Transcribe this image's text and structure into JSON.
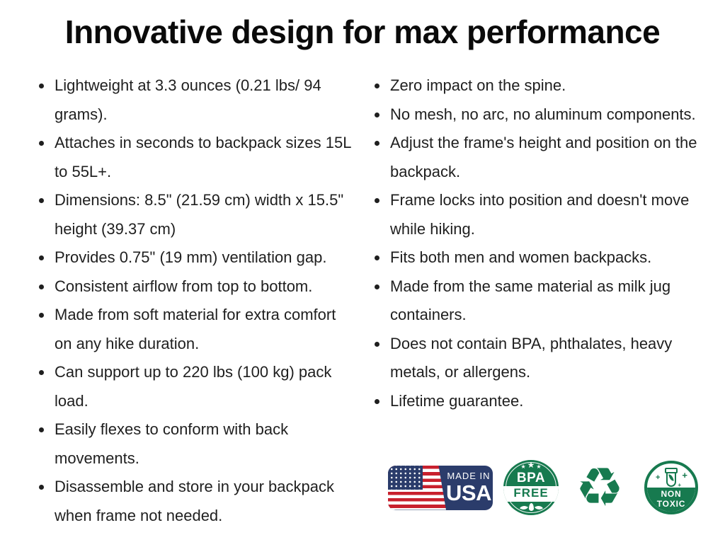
{
  "header": {
    "title": "Innovative design for max performance"
  },
  "features": {
    "left": [
      "Lightweight at 3.3 ounces (0.21 lbs/ 94 grams).",
      "Attaches in seconds to backpack sizes 15L to 55L+.",
      "Dimensions: 8.5\" (21.59 cm) width x 15.5\" height (39.37 cm)",
      "Provides 0.75\" (19 mm) ventilation gap.",
      "Consistent airflow from top to bottom.",
      "Made from soft material for extra comfort on any hike duration.",
      "Can support up to 220 lbs (100 kg) pack load.",
      "Easily flexes to conform with back movements.",
      "Disassemble and store in your backpack when frame not needed."
    ],
    "right": [
      "Zero impact on the spine.",
      "No mesh, no arc, no aluminum components.",
      "Adjust the frame's height and position on the backpack.",
      "Frame locks into position and doesn't move while hiking.",
      "Fits both men and women backpacks.",
      "Made from the same material as milk jug containers.",
      "Does not contain BPA, phthalates, heavy metals, or allergens.",
      "Lifetime guarantee."
    ]
  },
  "badges": {
    "made_in_usa": {
      "line1": "MADE IN",
      "line2": "USA"
    },
    "bpa_free": {
      "star": "★",
      "line1": "BPA",
      "line2": "FREE"
    },
    "recycle": {
      "symbol": "♻"
    },
    "non_toxic": {
      "sparkle": "+",
      "line1": "NON",
      "line2": "TOXIC"
    }
  },
  "colors": {
    "green": "#177A4F",
    "navy": "#2B3C6B",
    "red": "#C8202D",
    "text": "#1F1F1F"
  }
}
